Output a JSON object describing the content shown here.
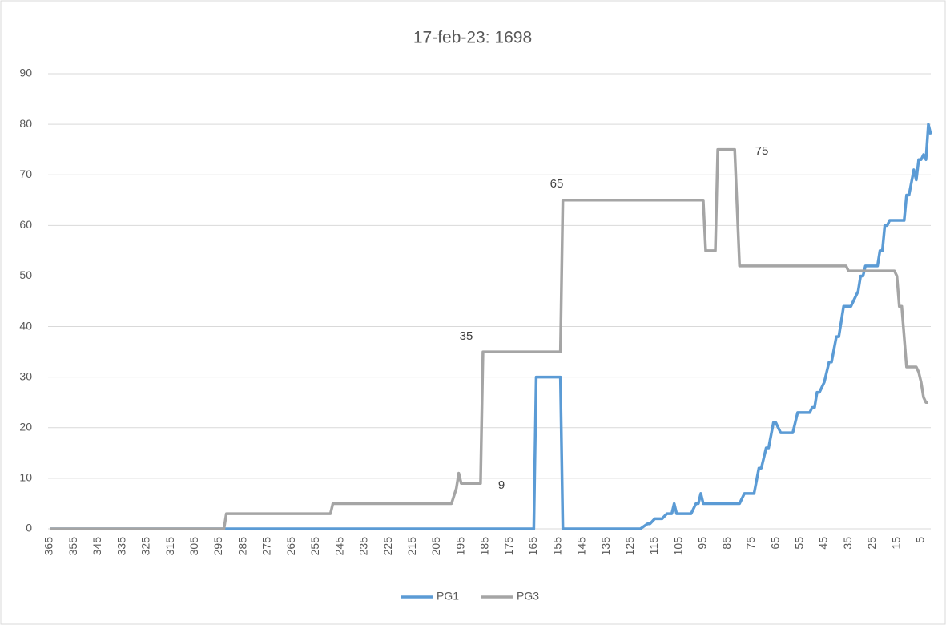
{
  "chart_data": {
    "type": "line",
    "title": "17-feb-23: 1698",
    "xlim": [
      365,
      1
    ],
    "xticks": [
      365,
      355,
      345,
      335,
      325,
      315,
      305,
      295,
      285,
      275,
      265,
      255,
      245,
      235,
      225,
      215,
      205,
      195,
      185,
      175,
      165,
      155,
      145,
      135,
      125,
      115,
      105,
      95,
      85,
      75,
      65,
      55,
      45,
      35,
      25,
      15,
      5
    ],
    "ylim": [
      0,
      90
    ],
    "yticks": [
      0,
      10,
      20,
      30,
      40,
      50,
      60,
      70,
      80,
      90
    ],
    "grid": true,
    "legend": "bottom",
    "annotations": [
      "35",
      "65",
      "75",
      "9"
    ],
    "series": [
      {
        "name": "PG1",
        "color": "#5b9bd5",
        "x": [
          365,
          165,
          164,
          154,
          153,
          121,
          118,
          117,
          115,
          112,
          110,
          108,
          107,
          106,
          100,
          98,
          97,
          96,
          95,
          94,
          80,
          78,
          74,
          72,
          71,
          69,
          68,
          66,
          65,
          63,
          61,
          58,
          56,
          55,
          51,
          50,
          49,
          48,
          47,
          45,
          43,
          42,
          40,
          39,
          37,
          35,
          34,
          32,
          31,
          30,
          29,
          28,
          27,
          23,
          22,
          21,
          20,
          19,
          18,
          13,
          12,
          11,
          10,
          8,
          7,
          6,
          5,
          4,
          3,
          2,
          1
        ],
        "values": [
          0,
          0,
          30,
          30,
          0,
          0,
          1,
          1,
          2,
          2,
          3,
          3,
          5,
          3,
          3,
          5,
          5,
          7,
          5,
          5,
          5,
          7,
          7,
          12,
          12,
          16,
          16,
          21,
          21,
          19,
          19,
          19,
          23,
          23,
          23,
          24,
          24,
          27,
          27,
          29,
          33,
          33,
          38,
          38,
          44,
          44,
          44,
          46,
          47,
          50,
          50,
          52,
          52,
          52,
          55,
          55,
          60,
          60,
          61,
          61,
          61,
          66,
          66,
          71,
          69,
          73,
          73,
          74,
          73,
          80,
          78
        ]
      },
      {
        "name": "PG3",
        "color": "#a5a5a5",
        "x": [
          365,
          293,
          292,
          249,
          248,
          199,
          197,
          196,
          195,
          187,
          186,
          154,
          153,
          95,
          94,
          90,
          89,
          82,
          80,
          36,
          35,
          16,
          15,
          14,
          13,
          12,
          11,
          7,
          6,
          5,
          4,
          3,
          2
        ],
        "values": [
          0,
          0,
          3,
          3,
          5,
          5,
          8,
          11,
          9,
          9,
          35,
          35,
          65,
          65,
          55,
          55,
          75,
          75,
          52,
          52,
          51,
          51,
          50,
          44,
          44,
          38,
          32,
          32,
          31,
          29,
          26,
          25,
          25
        ]
      }
    ]
  }
}
